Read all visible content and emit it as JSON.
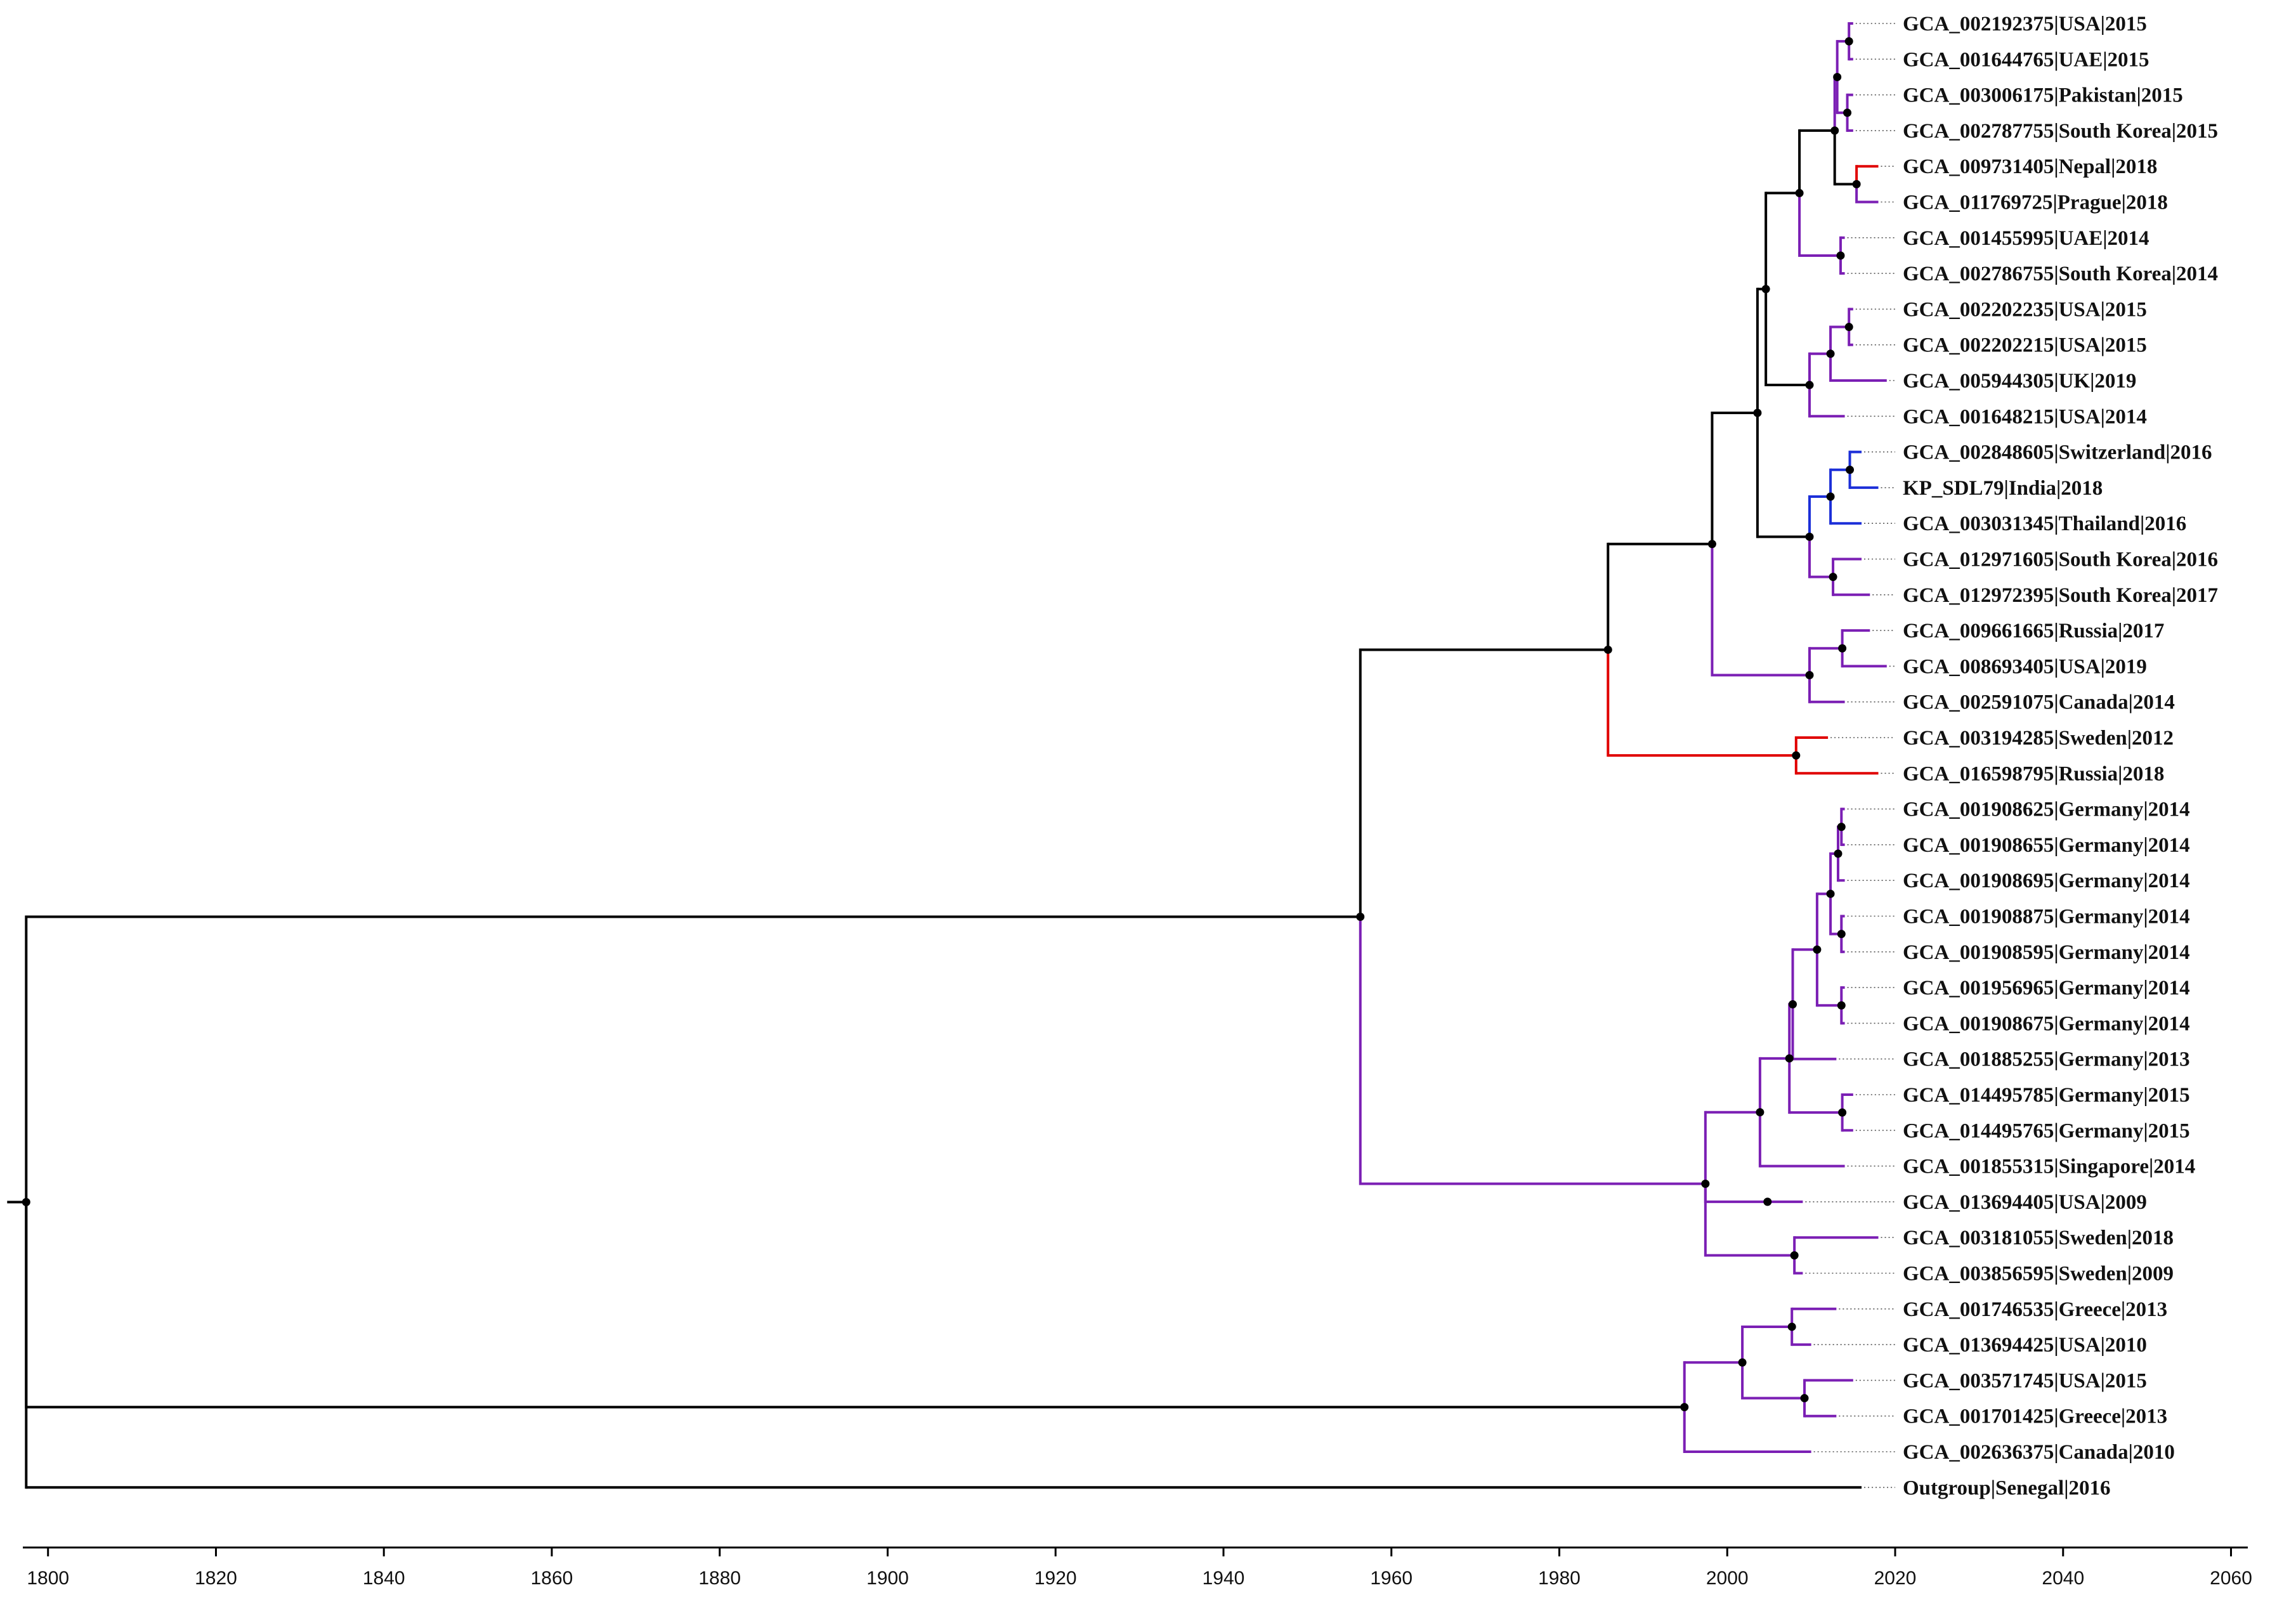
{
  "colors": {
    "black": "#000000",
    "purple": "#7b1fb4",
    "red": "#e00000",
    "blue": "#1c2fd8",
    "node": "#000000",
    "leader": "#555555"
  },
  "axis": {
    "min": 1797,
    "max": 2062,
    "ticks": [
      1800,
      1820,
      1840,
      1860,
      1880,
      1900,
      1920,
      1940,
      1960,
      1980,
      2000,
      2020,
      2040,
      2060
    ],
    "tick_labels": [
      "1800",
      "1820",
      "1840",
      "1860",
      "1880",
      "1900",
      "1920",
      "1940",
      "1960",
      "1980",
      "2000",
      "2020",
      "2040",
      "2060"
    ]
  },
  "tips": [
    {
      "label": "GCA_002192375|USA|2015",
      "t": 2015,
      "color": "purple"
    },
    {
      "label": "GCA_001644765|UAE|2015",
      "t": 2015,
      "color": "purple"
    },
    {
      "label": "GCA_003006175|Pakistan|2015",
      "t": 2015,
      "color": "purple"
    },
    {
      "label": "GCA_002787755|South Korea|2015",
      "t": 2015,
      "color": "purple"
    },
    {
      "label": "GCA_009731405|Nepal|2018",
      "t": 2018,
      "color": "red"
    },
    {
      "label": "GCA_011769725|Prague|2018",
      "t": 2018,
      "color": "purple"
    },
    {
      "label": "GCA_001455995|UAE|2014",
      "t": 2014,
      "color": "purple"
    },
    {
      "label": "GCA_002786755|South Korea|2014",
      "t": 2014,
      "color": "purple"
    },
    {
      "label": "GCA_002202235|USA|2015",
      "t": 2015,
      "color": "purple"
    },
    {
      "label": "GCA_002202215|USA|2015",
      "t": 2015,
      "color": "purple"
    },
    {
      "label": "GCA_005944305|UK|2019",
      "t": 2019,
      "color": "purple"
    },
    {
      "label": "GCA_001648215|USA|2014",
      "t": 2014,
      "color": "purple"
    },
    {
      "label": "GCA_002848605|Switzerland|2016",
      "t": 2016,
      "color": "blue"
    },
    {
      "label": "KP_SDL79|India|2018",
      "t": 2018,
      "color": "blue"
    },
    {
      "label": "GCA_003031345|Thailand|2016",
      "t": 2016,
      "color": "blue"
    },
    {
      "label": "GCA_012971605|South Korea|2016",
      "t": 2016,
      "color": "purple"
    },
    {
      "label": "GCA_012972395|South Korea|2017",
      "t": 2017,
      "color": "purple"
    },
    {
      "label": "GCA_009661665|Russia|2017",
      "t": 2017,
      "color": "purple"
    },
    {
      "label": "GCA_008693405|USA|2019",
      "t": 2019,
      "color": "purple"
    },
    {
      "label": "GCA_002591075|Canada|2014",
      "t": 2014,
      "color": "purple"
    },
    {
      "label": "GCA_003194285|Sweden|2012",
      "t": 2012,
      "color": "red"
    },
    {
      "label": "GCA_016598795|Russia|2018",
      "t": 2018,
      "color": "red"
    },
    {
      "label": "GCA_001908625|Germany|2014",
      "t": 2014,
      "color": "purple"
    },
    {
      "label": "GCA_001908655|Germany|2014",
      "t": 2014,
      "color": "purple"
    },
    {
      "label": "GCA_001908695|Germany|2014",
      "t": 2014,
      "color": "purple"
    },
    {
      "label": "GCA_001908875|Germany|2014",
      "t": 2014,
      "color": "purple"
    },
    {
      "label": "GCA_001908595|Germany|2014",
      "t": 2014,
      "color": "purple"
    },
    {
      "label": "GCA_001956965|Germany|2014",
      "t": 2014,
      "color": "purple"
    },
    {
      "label": "GCA_001908675|Germany|2014",
      "t": 2014,
      "color": "purple"
    },
    {
      "label": "GCA_001885255|Germany|2013",
      "t": 2013,
      "color": "purple"
    },
    {
      "label": "GCA_014495785|Germany|2015",
      "t": 2015,
      "color": "purple"
    },
    {
      "label": "GCA_014495765|Germany|2015",
      "t": 2015,
      "color": "purple"
    },
    {
      "label": "GCA_001855315|Singapore|2014",
      "t": 2014,
      "color": "purple"
    },
    {
      "label": "GCA_013694405|USA|2009",
      "t": 2009,
      "color": "purple"
    },
    {
      "label": "GCA_003181055|Sweden|2018",
      "t": 2018,
      "color": "purple"
    },
    {
      "label": "GCA_003856595|Sweden|2009",
      "t": 2009,
      "color": "purple"
    },
    {
      "label": "GCA_001746535|Greece|2013",
      "t": 2013,
      "color": "purple"
    },
    {
      "label": "GCA_013694425|USA|2010",
      "t": 2010,
      "color": "purple"
    },
    {
      "label": "GCA_003571745|USA|2015",
      "t": 2015,
      "color": "purple"
    },
    {
      "label": "GCA_001701425|Greece|2013",
      "t": 2013,
      "color": "purple"
    },
    {
      "label": "GCA_002636375|Canada|2010",
      "t": 2010,
      "color": "purple"
    },
    {
      "label": "Outgroup|Senegal|2016",
      "t": 2016,
      "color": "black"
    }
  ],
  "tree": {
    "t": 1797.4,
    "children": [
      {
        "t": 1956.3,
        "color": "black",
        "children": [
          {
            "t": 1985.8,
            "color": "black",
            "children": [
              {
                "t": 1998.2,
                "color": "black",
                "children": [
                  {
                    "t": 2003.6,
                    "color": "black",
                    "children": [
                      {
                        "t": 2004.6,
                        "color": "black",
                        "children": [
                          {
                            "t": 2008.6,
                            "color": "black",
                            "children": [
                              {
                                "t": 2012.8,
                                "color": "black",
                                "children": [
                                  {
                                    "t": 2013.1,
                                    "color": "purple",
                                    "children": [
                                      {
                                        "t": 2014.5,
                                        "color": "purple",
                                        "children": [
                                          {
                                            "tip": 0
                                          },
                                          {
                                            "tip": 1
                                          }
                                        ]
                                      },
                                      {
                                        "t": 2014.3,
                                        "color": "purple",
                                        "children": [
                                          {
                                            "tip": 2
                                          },
                                          {
                                            "tip": 3
                                          }
                                        ]
                                      }
                                    ]
                                  },
                                  {
                                    "t": 2015.4,
                                    "color": "black",
                                    "children": [
                                      {
                                        "tip": 4
                                      },
                                      {
                                        "tip": 5
                                      }
                                    ]
                                  }
                                ]
                              },
                              {
                                "t": 2013.5,
                                "color": "purple",
                                "children": [
                                  {
                                    "tip": 6
                                  },
                                  {
                                    "tip": 7
                                  }
                                ]
                              }
                            ]
                          },
                          {
                            "t": 2009.8,
                            "color": "black",
                            "children": [
                              {
                                "t": 2012.3,
                                "color": "purple",
                                "children": [
                                  {
                                    "t": 2014.5,
                                    "color": "purple",
                                    "children": [
                                      {
                                        "tip": 8
                                      },
                                      {
                                        "tip": 9
                                      }
                                    ]
                                  },
                                  {
                                    "tip": 10
                                  }
                                ]
                              },
                              {
                                "tip": 11
                              }
                            ]
                          }
                        ]
                      },
                      {
                        "t": 2009.8,
                        "color": "black",
                        "children": [
                          {
                            "t": 2012.3,
                            "color": "blue",
                            "children": [
                              {
                                "t": 2014.6,
                                "color": "blue",
                                "children": [
                                  {
                                    "tip": 12
                                  },
                                  {
                                    "tip": 13
                                  }
                                ]
                              },
                              {
                                "tip": 14
                              }
                            ]
                          },
                          {
                            "t": 2012.6,
                            "color": "purple",
                            "children": [
                              {
                                "tip": 15
                              },
                              {
                                "tip": 16
                              }
                            ]
                          }
                        ]
                      }
                    ]
                  },
                  {
                    "t": 2009.8,
                    "color": "purple",
                    "children": [
                      {
                        "t": 2013.7,
                        "color": "purple",
                        "children": [
                          {
                            "tip": 17
                          },
                          {
                            "tip": 18
                          }
                        ]
                      },
                      {
                        "tip": 19
                      }
                    ]
                  }
                ]
              },
              {
                "t": 2008.2,
                "color": "red",
                "children": [
                  {
                    "tip": 20
                  },
                  {
                    "tip": 21
                  }
                ]
              }
            ]
          },
          {
            "t": 1997.4,
            "color": "purple",
            "children": [
              {
                "t": 2003.9,
                "color": "purple",
                "children": [
                  {
                    "t": 2007.4,
                    "color": "purple",
                    "children": [
                      {
                        "t": 2007.8,
                        "color": "purple",
                        "children": [
                          {
                            "t": 2010.7,
                            "color": "purple",
                            "children": [
                              {
                                "t": 2012.3,
                                "color": "purple",
                                "children": [
                                  {
                                    "t": 2013.2,
                                    "color": "purple",
                                    "children": [
                                      {
                                        "t": 2013.6,
                                        "color": "purple",
                                        "children": [
                                          {
                                            "tip": 22
                                          },
                                          {
                                            "tip": 23
                                          }
                                        ]
                                      },
                                      {
                                        "tip": 24
                                      }
                                    ]
                                  },
                                  {
                                    "t": 2013.6,
                                    "color": "purple",
                                    "children": [
                                      {
                                        "tip": 25
                                      },
                                      {
                                        "tip": 26
                                      }
                                    ]
                                  }
                                ]
                              },
                              {
                                "t": 2013.6,
                                "color": "purple",
                                "children": [
                                  {
                                    "tip": 27
                                  },
                                  {
                                    "tip": 28
                                  }
                                ]
                              }
                            ]
                          },
                          {
                            "tip": 29
                          }
                        ]
                      },
                      {
                        "t": 2013.7,
                        "color": "purple",
                        "children": [
                          {
                            "tip": 30
                          },
                          {
                            "tip": 31
                          }
                        ]
                      }
                    ]
                  },
                  {
                    "tip": 32
                  }
                ]
              },
              {
                "t": 2004.8,
                "color": "purple",
                "children": [
                  {
                    "tip": 33
                  }
                ]
              },
              {
                "t": 2008.0,
                "color": "purple",
                "children": [
                  {
                    "tip": 34
                  },
                  {
                    "tip": 35
                  }
                ]
              }
            ]
          }
        ]
      },
      {
        "t": 1994.9,
        "color": "black",
        "children": [
          {
            "t": 2001.8,
            "color": "purple",
            "children": [
              {
                "t": 2007.7,
                "color": "purple",
                "children": [
                  {
                    "tip": 36
                  },
                  {
                    "tip": 37
                  }
                ]
              },
              {
                "t": 2009.2,
                "color": "purple",
                "children": [
                  {
                    "tip": 38
                  },
                  {
                    "tip": 39
                  }
                ]
              }
            ]
          },
          {
            "tip": 40
          }
        ]
      },
      {
        "tip": 41
      }
    ]
  }
}
